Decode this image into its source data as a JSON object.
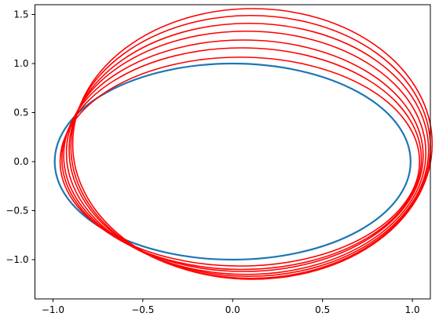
{
  "chart_data": {
    "type": "line",
    "title": "",
    "xlabel": "",
    "ylabel": "",
    "xlim": [
      -1.1,
      1.1
    ],
    "ylim": [
      -1.4,
      1.6
    ],
    "grid": false,
    "legend": "none",
    "xticks": [
      {
        "value": -1.0,
        "label": "−1.0"
      },
      {
        "value": -0.5,
        "label": "−0.5"
      },
      {
        "value": 0.0,
        "label": "0.0"
      },
      {
        "value": 0.5,
        "label": "0.5"
      },
      {
        "value": 1.0,
        "label": "1.0"
      }
    ],
    "yticks": [
      {
        "value": -1.0,
        "label": "−1.0"
      },
      {
        "value": -0.5,
        "label": "−0.5"
      },
      {
        "value": 0.0,
        "label": "0.0"
      },
      {
        "value": 0.5,
        "label": "0.5"
      },
      {
        "value": 1.0,
        "label": "1.0"
      },
      {
        "value": 1.5,
        "label": "1.5"
      }
    ],
    "series": [
      {
        "color": "#1f77b4",
        "shape": "ellipse",
        "center": [
          0.0,
          0.0
        ],
        "radius_x": 0.99,
        "radius_y": 1.0,
        "stroke_width": 2.2
      },
      {
        "color": "#ff0000",
        "shape": "ellipse",
        "center": [
          0.04,
          0.0
        ],
        "radius_x": 1.0,
        "radius_y": 1.065
      },
      {
        "color": "#ff0000",
        "shape": "ellipse",
        "center": [
          0.05,
          0.03
        ],
        "radius_x": 1.0,
        "radius_y": 1.13
      },
      {
        "color": "#ff0000",
        "shape": "ellipse",
        "center": [
          0.06,
          0.06
        ],
        "radius_x": 1.0,
        "radius_y": 1.18
      },
      {
        "color": "#ff0000",
        "shape": "ellipse",
        "center": [
          0.075,
          0.09
        ],
        "radius_x": 1.0,
        "radius_y": 1.24
      },
      {
        "color": "#ff0000",
        "shape": "ellipse",
        "center": [
          0.09,
          0.12
        ],
        "radius_x": 1.0,
        "radius_y": 1.29
      },
      {
        "color": "#ff0000",
        "shape": "ellipse",
        "center": [
          0.1,
          0.15
        ],
        "radius_x": 1.0,
        "radius_y": 1.34
      },
      {
        "color": "#ff0000",
        "shape": "ellipse",
        "center": [
          0.11,
          0.18
        ],
        "radius_x": 1.0,
        "radius_y": 1.38
      }
    ]
  }
}
